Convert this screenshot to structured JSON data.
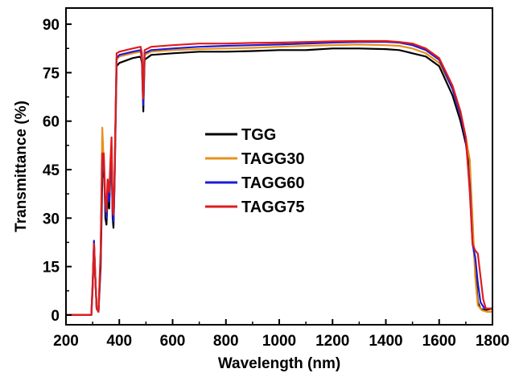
{
  "chart_data": {
    "type": "line",
    "title": "",
    "xlabel": "Wavelength (nm)",
    "ylabel": "Transmittance (%)",
    "xlim": [
      200,
      1800
    ],
    "ylim": [
      -3,
      95
    ],
    "xticks": [
      200,
      400,
      600,
      800,
      1000,
      1200,
      1400,
      1600,
      1800
    ],
    "yticks": [
      0,
      15,
      30,
      45,
      60,
      75,
      90
    ],
    "grid": false,
    "legend_position": "center",
    "series": [
      {
        "name": "TGG",
        "color": "#000000",
        "points": [
          [
            200,
            0
          ],
          [
            295,
            0
          ],
          [
            300,
            8
          ],
          [
            305,
            22
          ],
          [
            310,
            12
          ],
          [
            315,
            2
          ],
          [
            322,
            1
          ],
          [
            330,
            15
          ],
          [
            336,
            42
          ],
          [
            342,
            48
          ],
          [
            348,
            30
          ],
          [
            352,
            28
          ],
          [
            356,
            36
          ],
          [
            362,
            33
          ],
          [
            367,
            45
          ],
          [
            371,
            50
          ],
          [
            375,
            30
          ],
          [
            378,
            27
          ],
          [
            382,
            40
          ],
          [
            390,
            77
          ],
          [
            400,
            78
          ],
          [
            450,
            79.5
          ],
          [
            480,
            80
          ],
          [
            485,
            78
          ],
          [
            490,
            63
          ],
          [
            495,
            79
          ],
          [
            520,
            80.5
          ],
          [
            600,
            81
          ],
          [
            700,
            81.5
          ],
          [
            800,
            81.5
          ],
          [
            900,
            81.7
          ],
          [
            1000,
            82
          ],
          [
            1100,
            82
          ],
          [
            1200,
            82.5
          ],
          [
            1300,
            82.5
          ],
          [
            1400,
            82.3
          ],
          [
            1450,
            82
          ],
          [
            1500,
            81
          ],
          [
            1550,
            80
          ],
          [
            1600,
            77
          ],
          [
            1650,
            68
          ],
          [
            1680,
            60
          ],
          [
            1700,
            53
          ],
          [
            1715,
            45
          ],
          [
            1730,
            20
          ],
          [
            1745,
            4
          ],
          [
            1755,
            2
          ],
          [
            1770,
            1.5
          ],
          [
            1800,
            2
          ]
        ]
      },
      {
        "name": "TAGG30",
        "color": "#e8901c",
        "points": [
          [
            200,
            0
          ],
          [
            295,
            0
          ],
          [
            300,
            9
          ],
          [
            305,
            23
          ],
          [
            310,
            12
          ],
          [
            315,
            2
          ],
          [
            322,
            1
          ],
          [
            330,
            20
          ],
          [
            336,
            58
          ],
          [
            342,
            47
          ],
          [
            348,
            33
          ],
          [
            352,
            31
          ],
          [
            356,
            40
          ],
          [
            362,
            36
          ],
          [
            367,
            46
          ],
          [
            371,
            52
          ],
          [
            375,
            33
          ],
          [
            378,
            30
          ],
          [
            382,
            42
          ],
          [
            390,
            79
          ],
          [
            400,
            80
          ],
          [
            450,
            81
          ],
          [
            480,
            81.5
          ],
          [
            485,
            79
          ],
          [
            490,
            65
          ],
          [
            495,
            80.5
          ],
          [
            520,
            81.5
          ],
          [
            600,
            82
          ],
          [
            700,
            82.3
          ],
          [
            800,
            82.5
          ],
          [
            900,
            82.7
          ],
          [
            1000,
            83
          ],
          [
            1100,
            83.3
          ],
          [
            1200,
            83.5
          ],
          [
            1300,
            83.7
          ],
          [
            1400,
            83.5
          ],
          [
            1450,
            83.3
          ],
          [
            1500,
            82.5
          ],
          [
            1550,
            81
          ],
          [
            1600,
            78
          ],
          [
            1650,
            70
          ],
          [
            1680,
            62
          ],
          [
            1700,
            55
          ],
          [
            1715,
            48
          ],
          [
            1725,
            30
          ],
          [
            1735,
            12
          ],
          [
            1745,
            3
          ],
          [
            1760,
            1.5
          ],
          [
            1780,
            1
          ],
          [
            1800,
            1
          ]
        ]
      },
      {
        "name": "TAGG60",
        "color": "#1c1cd4",
        "points": [
          [
            200,
            0
          ],
          [
            295,
            0
          ],
          [
            300,
            9
          ],
          [
            305,
            23
          ],
          [
            310,
            12
          ],
          [
            315,
            2
          ],
          [
            322,
            1
          ],
          [
            330,
            18
          ],
          [
            336,
            49
          ],
          [
            342,
            48
          ],
          [
            348,
            33
          ],
          [
            352,
            30
          ],
          [
            356,
            39
          ],
          [
            362,
            35
          ],
          [
            367,
            46
          ],
          [
            371,
            52
          ],
          [
            375,
            32
          ],
          [
            378,
            29
          ],
          [
            382,
            41
          ],
          [
            390,
            79.5
          ],
          [
            400,
            80.5
          ],
          [
            450,
            81.5
          ],
          [
            480,
            82
          ],
          [
            485,
            80
          ],
          [
            490,
            65
          ],
          [
            495,
            81
          ],
          [
            520,
            82
          ],
          [
            600,
            82.5
          ],
          [
            700,
            83
          ],
          [
            800,
            83.3
          ],
          [
            900,
            83.5
          ],
          [
            1000,
            83.7
          ],
          [
            1100,
            84
          ],
          [
            1200,
            84.3
          ],
          [
            1300,
            84.5
          ],
          [
            1400,
            84.5
          ],
          [
            1450,
            84.3
          ],
          [
            1500,
            83.5
          ],
          [
            1550,
            82
          ],
          [
            1600,
            79
          ],
          [
            1650,
            70
          ],
          [
            1680,
            62
          ],
          [
            1700,
            54
          ],
          [
            1715,
            40
          ],
          [
            1725,
            22
          ],
          [
            1735,
            18
          ],
          [
            1745,
            10
          ],
          [
            1755,
            4
          ],
          [
            1770,
            2
          ],
          [
            1800,
            2
          ]
        ]
      },
      {
        "name": "TAGG75",
        "color": "#e01c1c",
        "points": [
          [
            200,
            0
          ],
          [
            295,
            0
          ],
          [
            300,
            10
          ],
          [
            305,
            22
          ],
          [
            310,
            12
          ],
          [
            315,
            2
          ],
          [
            322,
            1
          ],
          [
            330,
            20
          ],
          [
            336,
            50
          ],
          [
            342,
            50
          ],
          [
            348,
            35
          ],
          [
            352,
            32
          ],
          [
            356,
            42
          ],
          [
            362,
            38
          ],
          [
            367,
            48
          ],
          [
            371,
            55
          ],
          [
            375,
            34
          ],
          [
            378,
            31
          ],
          [
            382,
            43
          ],
          [
            390,
            81
          ],
          [
            400,
            81.5
          ],
          [
            450,
            82.5
          ],
          [
            480,
            83
          ],
          [
            485,
            81
          ],
          [
            490,
            67
          ],
          [
            495,
            82
          ],
          [
            520,
            83
          ],
          [
            600,
            83.5
          ],
          [
            700,
            84
          ],
          [
            800,
            84
          ],
          [
            900,
            84.2
          ],
          [
            1000,
            84.3
          ],
          [
            1100,
            84.5
          ],
          [
            1200,
            84.7
          ],
          [
            1300,
            84.8
          ],
          [
            1400,
            84.8
          ],
          [
            1450,
            84.5
          ],
          [
            1500,
            84
          ],
          [
            1550,
            82.5
          ],
          [
            1600,
            79.5
          ],
          [
            1650,
            71
          ],
          [
            1680,
            63
          ],
          [
            1700,
            55
          ],
          [
            1715,
            38
          ],
          [
            1725,
            22
          ],
          [
            1735,
            20
          ],
          [
            1745,
            19
          ],
          [
            1755,
            12
          ],
          [
            1765,
            5
          ],
          [
            1775,
            2
          ],
          [
            1800,
            2
          ]
        ]
      }
    ]
  }
}
